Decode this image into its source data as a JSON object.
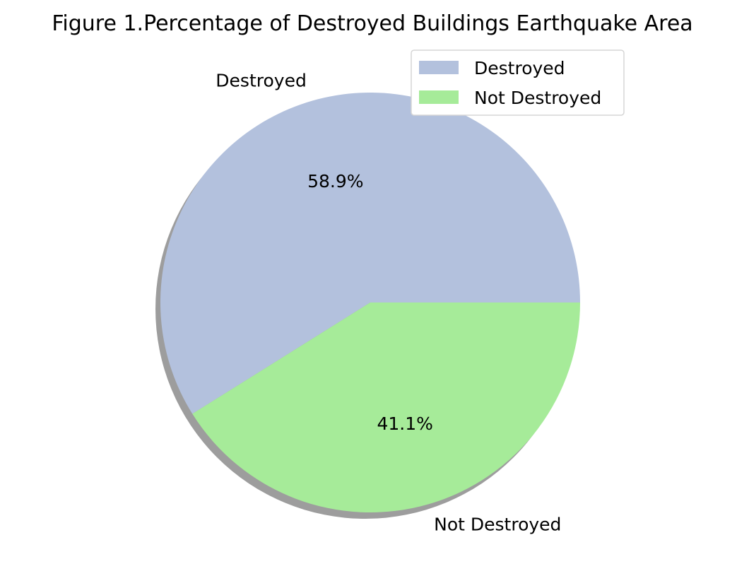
{
  "chart_data": {
    "type": "pie",
    "title": "Figure 1.Percentage of Destroyed Buildings Earthquake Area",
    "categories": [
      "Destroyed",
      "Not Destroyed"
    ],
    "values": [
      58.9,
      41.1
    ],
    "percent_labels": [
      "58.9%",
      "41.1%"
    ],
    "colors": [
      "#b3c1dd",
      "#a6eb99"
    ],
    "shadow": true,
    "start_angle_deg": 0,
    "legend": {
      "placement": "top-right",
      "entries": [
        "Destroyed",
        "Not Destroyed"
      ]
    }
  }
}
